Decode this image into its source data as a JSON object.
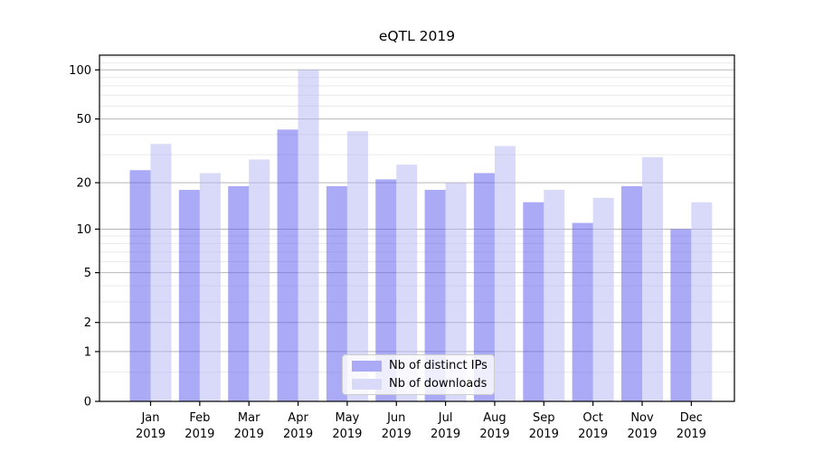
{
  "chart_data": {
    "type": "bar",
    "title": "eQTL 2019",
    "categories": [
      "Jan 2019",
      "Feb 2019",
      "Mar 2019",
      "Apr 2019",
      "May 2019",
      "Jun 2019",
      "Jul 2019",
      "Aug 2019",
      "Sep 2019",
      "Oct 2019",
      "Nov 2019",
      "Dec 2019"
    ],
    "series": [
      {
        "name": "Nb of distinct IPs",
        "values": [
          24,
          18,
          19,
          43,
          19,
          21,
          18,
          23,
          15,
          11,
          19,
          10
        ]
      },
      {
        "name": "Nb of downloads",
        "values": [
          35,
          23,
          28,
          100,
          42,
          26,
          20,
          34,
          18,
          16,
          29,
          15
        ]
      }
    ],
    "yscale": "log1p",
    "ylim": [
      0,
      123
    ],
    "yticks": [
      0,
      1,
      2,
      5,
      10,
      20,
      50,
      100
    ],
    "minor_gridlines": [
      0.5,
      3,
      4,
      6,
      7,
      8,
      9,
      30,
      40,
      60,
      70,
      80,
      90,
      110,
      120
    ],
    "grid": true,
    "legend_position": "lower center",
    "xlabel": "",
    "ylabel": ""
  },
  "colors": {
    "series_base": [
      "#5555ee",
      "#b3b3f5"
    ],
    "bar_opacity": 0.5,
    "grid_major": "#b8b8b8",
    "grid_minor": "#e9e9e9",
    "spine": "#000000",
    "text": "#000000"
  }
}
